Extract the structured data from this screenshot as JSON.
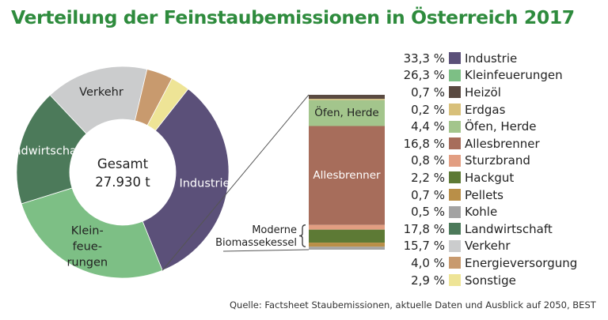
{
  "title": "Verteilung der Feinstaubemissionen in Österreich 2017",
  "source": "Quelle:  Factsheet Staubemissionen, aktuelle Daten und Ausblick auf 2050, BEST",
  "colors": {
    "title": "#2e8b3d"
  },
  "chart_data": [
    {
      "type": "pie",
      "center_label": [
        "Gesamt",
        "27.930 t"
      ],
      "slices": [
        {
          "name": "Industrie",
          "value": 33.3,
          "color": "#5b5079",
          "label": [
            "Industrie"
          ]
        },
        {
          "name": "Kleinfeuerungen",
          "value": 26.3,
          "color": "#7dbf85",
          "label": [
            "Klein-",
            "feue-",
            "rungen"
          ]
        },
        {
          "name": "Landwirtschaft",
          "value": 17.8,
          "color": "#4c7a5a",
          "label": [
            "Landwirtschaft"
          ]
        },
        {
          "name": "Verkehr",
          "value": 15.7,
          "color": "#cbcccd",
          "label": [
            "Verkehr"
          ]
        },
        {
          "name": "Energieversorgung",
          "value": 4.0,
          "color": "#c89a6e",
          "label": []
        },
        {
          "name": "Sonstige",
          "value": 2.9,
          "color": "#eee496",
          "label": []
        }
      ]
    },
    {
      "type": "bar",
      "stacked": true,
      "segments": [
        {
          "name": "Heizöl",
          "value": 0.7,
          "color": "#5a4a41",
          "label": ""
        },
        {
          "name": "Erdgas",
          "value": 0.2,
          "color": "#d8c07a",
          "label": ""
        },
        {
          "name": "Öfen, Herde",
          "value": 4.4,
          "color": "#a3c58c",
          "label": "Öfen, Herde"
        },
        {
          "name": "Allesbrenner",
          "value": 16.8,
          "color": "#a76d5b",
          "label": "Allesbrenner"
        },
        {
          "name": "Sturzbrand",
          "value": 0.8,
          "color": "#e29e82",
          "label": ""
        },
        {
          "name": "Hackgut",
          "value": 2.2,
          "color": "#5d7a35",
          "label": ""
        },
        {
          "name": "Pellets",
          "value": 0.7,
          "color": "#b98f48",
          "label": ""
        },
        {
          "name": "Kohle",
          "value": 0.5,
          "color": "#a3a3a3",
          "label": ""
        }
      ],
      "bracket_label": [
        "Moderne",
        "Biomassekessel"
      ]
    }
  ],
  "legend": [
    {
      "value": "33,3 %",
      "name": "Industrie",
      "color": "#5b5079"
    },
    {
      "value": "26,3 %",
      "name": "Kleinfeuerungen",
      "color": "#7dbf85"
    },
    {
      "value": "0,7 %",
      "name": "Heizöl",
      "color": "#5a4a41"
    },
    {
      "value": "0,2 %",
      "name": "Erdgas",
      "color": "#d8c07a"
    },
    {
      "value": "4,4 %",
      "name": "Öfen, Herde",
      "color": "#a3c58c"
    },
    {
      "value": "16,8 %",
      "name": "Allesbrenner",
      "color": "#a76d5b"
    },
    {
      "value": "0,8 %",
      "name": "Sturzbrand",
      "color": "#e29e82"
    },
    {
      "value": "2,2 %",
      "name": "Hackgut",
      "color": "#5d7a35"
    },
    {
      "value": "0,7 %",
      "name": "Pellets",
      "color": "#b98f48"
    },
    {
      "value": "0,5 %",
      "name": "Kohle",
      "color": "#a3a3a3"
    },
    {
      "value": "17,8 %",
      "name": "Landwirtschaft",
      "color": "#4c7a5a"
    },
    {
      "value": "15,7 %",
      "name": "Verkehr",
      "color": "#cbcccd"
    },
    {
      "value": "4,0 %",
      "name": "Energieversorgung",
      "color": "#c89a6e"
    },
    {
      "value": "2,9 %",
      "name": "Sonstige",
      "color": "#eee496"
    }
  ]
}
